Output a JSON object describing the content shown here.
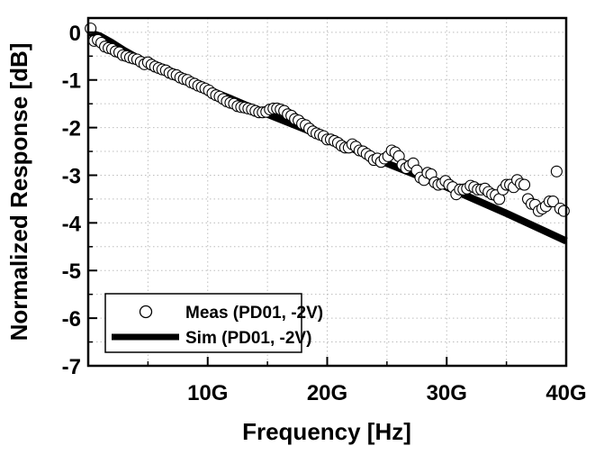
{
  "chart_data": {
    "type": "scatter",
    "title": "",
    "xlabel": "Frequency [Hz]",
    "ylabel": "Normalized Response [dB]",
    "xlim": [
      0,
      40
    ],
    "ylim": [
      -7,
      0.3
    ],
    "x_major_ticks": [
      10,
      20,
      30,
      40
    ],
    "x_tick_labels": [
      "10G",
      "20G",
      "30G",
      "40G"
    ],
    "y_major_ticks": [
      0,
      -1,
      -2,
      -3,
      -4,
      -5,
      -6,
      -7
    ],
    "y_tick_labels": [
      "0",
      "-1",
      "-2",
      "-3",
      "-4",
      "-5",
      "-6",
      "-7"
    ],
    "grid": true,
    "legend_position": "bottom-left",
    "series": [
      {
        "name": "Meas (PD01, -2V)",
        "kind": "scatter",
        "marker": "open-circle",
        "color": "#000000",
        "x": [
          0.2,
          0.5,
          0.8,
          1.1,
          1.4,
          1.7,
          2.0,
          2.3,
          2.6,
          2.9,
          3.2,
          3.5,
          3.8,
          4.1,
          4.4,
          4.7,
          5.0,
          5.3,
          5.6,
          5.9,
          6.2,
          6.5,
          6.8,
          7.1,
          7.4,
          7.7,
          8.0,
          8.3,
          8.6,
          8.9,
          9.2,
          9.5,
          9.8,
          10.1,
          10.4,
          10.7,
          11.0,
          11.3,
          11.6,
          11.9,
          12.2,
          12.5,
          12.8,
          13.1,
          13.4,
          13.7,
          14.0,
          14.3,
          14.6,
          14.9,
          15.2,
          15.5,
          15.8,
          16.1,
          16.4,
          16.7,
          17.0,
          17.3,
          17.6,
          17.9,
          18.2,
          18.5,
          18.8,
          19.1,
          19.4,
          19.7,
          20.0,
          20.3,
          20.6,
          20.9,
          21.2,
          21.5,
          21.8,
          22.1,
          22.4,
          22.7,
          23.0,
          23.3,
          23.6,
          23.9,
          24.2,
          24.5,
          24.8,
          25.1,
          25.4,
          25.7,
          26.0,
          26.3,
          26.6,
          26.9,
          27.2,
          27.5,
          27.8,
          28.1,
          28.4,
          28.7,
          29.0,
          29.3,
          29.6,
          29.9,
          30.2,
          30.5,
          30.8,
          31.1,
          31.4,
          31.7,
          32.0,
          32.3,
          32.6,
          32.9,
          33.2,
          33.5,
          33.8,
          34.1,
          34.4,
          34.7,
          35.0,
          35.3,
          35.6,
          35.9,
          36.2,
          36.5,
          36.8,
          37.1,
          37.4,
          37.7,
          38.0,
          38.3,
          38.6,
          38.9,
          39.2,
          39.5,
          39.8
        ],
        "values": [
          0.08,
          -0.18,
          -0.16,
          -0.22,
          -0.3,
          -0.33,
          -0.35,
          -0.4,
          -0.42,
          -0.48,
          -0.5,
          -0.53,
          -0.55,
          -0.57,
          -0.62,
          -0.67,
          -0.63,
          -0.68,
          -0.72,
          -0.75,
          -0.78,
          -0.8,
          -0.85,
          -0.88,
          -0.9,
          -0.95,
          -0.98,
          -1.0,
          -1.05,
          -1.08,
          -1.12,
          -1.15,
          -1.18,
          -1.22,
          -1.28,
          -1.32,
          -1.35,
          -1.4,
          -1.45,
          -1.48,
          -1.5,
          -1.55,
          -1.57,
          -1.58,
          -1.6,
          -1.62,
          -1.65,
          -1.68,
          -1.68,
          -1.67,
          -1.62,
          -1.6,
          -1.6,
          -1.62,
          -1.65,
          -1.72,
          -1.75,
          -1.82,
          -1.85,
          -1.92,
          -1.95,
          -2.02,
          -2.08,
          -2.12,
          -2.15,
          -2.18,
          -2.25,
          -2.25,
          -2.28,
          -2.32,
          -2.38,
          -2.42,
          -2.42,
          -2.35,
          -2.4,
          -2.48,
          -2.5,
          -2.55,
          -2.6,
          -2.68,
          -2.65,
          -2.72,
          -2.65,
          -2.6,
          -2.48,
          -2.52,
          -2.6,
          -2.78,
          -2.85,
          -2.8,
          -2.75,
          -2.9,
          -3.05,
          -3.1,
          -2.95,
          -2.98,
          -3.15,
          -3.2,
          -3.18,
          -3.12,
          -3.2,
          -3.25,
          -3.4,
          -3.3,
          -3.3,
          -3.28,
          -3.22,
          -3.25,
          -3.3,
          -3.3,
          -3.28,
          -3.35,
          -3.4,
          -3.42,
          -3.5,
          -3.3,
          -3.2,
          -3.2,
          -3.25,
          -3.1,
          -3.18,
          -3.2,
          -3.5,
          -3.6,
          -3.62,
          -3.75,
          -3.7,
          -3.65,
          -3.55,
          -3.55,
          -2.92,
          -3.7,
          -3.75
        ]
      },
      {
        "name": "Sim (PD01, -2V)",
        "kind": "line",
        "color": "#000000",
        "x": [
          0,
          1,
          2,
          3,
          4,
          5,
          6,
          8,
          10,
          12,
          15,
          20,
          25,
          30,
          35,
          40
        ],
        "values": [
          0,
          -0.08,
          -0.22,
          -0.38,
          -0.52,
          -0.64,
          -0.75,
          -0.97,
          -1.2,
          -1.4,
          -1.72,
          -2.22,
          -2.75,
          -3.25,
          -3.8,
          -4.38
        ]
      }
    ]
  }
}
